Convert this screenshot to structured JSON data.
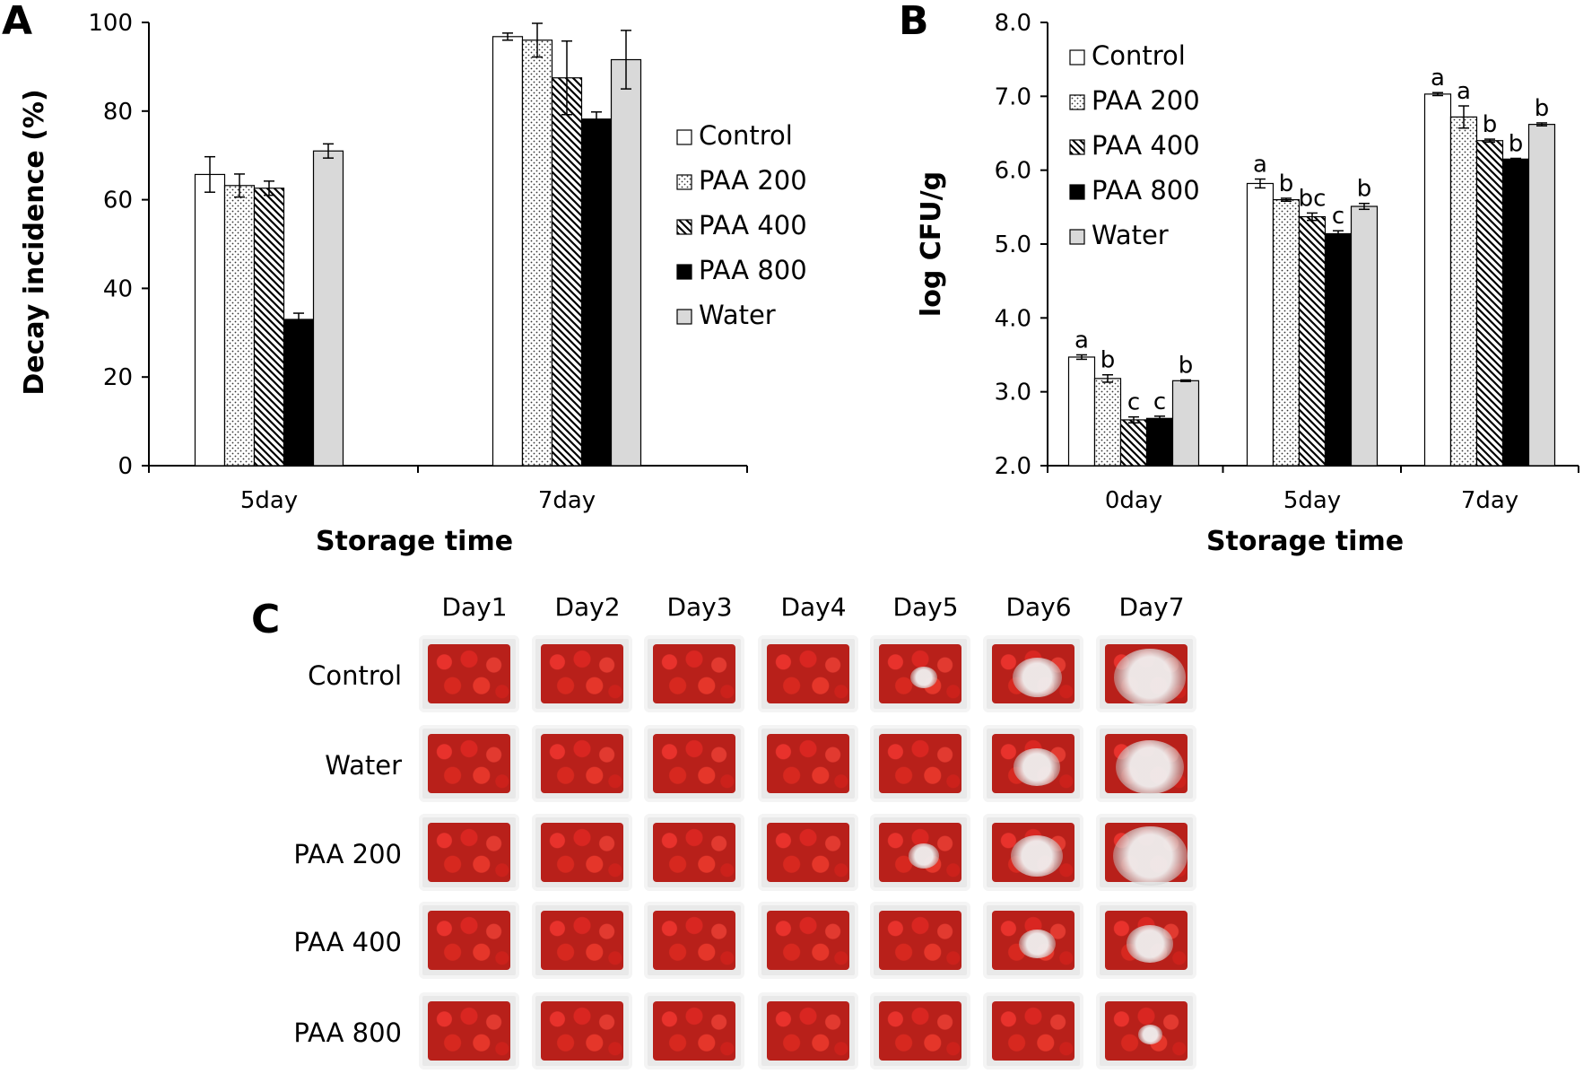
{
  "panels": {
    "a_letter": "A",
    "b_letter": "B",
    "c_letter": "C"
  },
  "chart_data": [
    {
      "type": "bar",
      "categories": [
        "5day",
        "7day"
      ],
      "xlabel": "Storage time",
      "ylabel": "Decay incidence (%)",
      "ylim": [
        0,
        100
      ],
      "yticks": [
        "0",
        "20",
        "40",
        "60",
        "80",
        "100"
      ],
      "legend_position": "right",
      "series": [
        {
          "name": "Control",
          "values": [
            65.7,
            96.8
          ],
          "errors": [
            4.0,
            0.8
          ],
          "pattern": "white"
        },
        {
          "name": "PAA 200",
          "values": [
            63.2,
            96.0
          ],
          "errors": [
            2.6,
            3.8
          ],
          "pattern": "dots"
        },
        {
          "name": "PAA 400",
          "values": [
            62.6,
            87.5
          ],
          "errors": [
            1.6,
            8.3
          ],
          "pattern": "hatch"
        },
        {
          "name": "PAA 800",
          "values": [
            33.0,
            78.2
          ],
          "errors": [
            1.4,
            1.6
          ],
          "pattern": "black"
        },
        {
          "name": "Water",
          "values": [
            71.0,
            91.6
          ],
          "errors": [
            1.6,
            6.6
          ],
          "pattern": "gray"
        }
      ]
    },
    {
      "type": "bar",
      "categories": [
        "0day",
        "5day",
        "7day"
      ],
      "xlabel": "Storage time",
      "ylabel": "log CFU/g",
      "ylim": [
        2.0,
        8.0
      ],
      "yticks": [
        "2.0",
        "3.0",
        "4.0",
        "5.0",
        "6.0",
        "7.0",
        "8.0"
      ],
      "legend_position": "top-left",
      "series": [
        {
          "name": "Control",
          "values": [
            3.47,
            5.82,
            7.03
          ],
          "errors": [
            0.03,
            0.06,
            0.02
          ],
          "labels": [
            "a",
            "a",
            "a"
          ],
          "pattern": "white"
        },
        {
          "name": "PAA 200",
          "values": [
            3.18,
            5.6,
            6.72
          ],
          "errors": [
            0.05,
            0.02,
            0.15
          ],
          "labels": [
            "b",
            "b",
            "a"
          ],
          "pattern": "dots"
        },
        {
          "name": "PAA 400",
          "values": [
            2.62,
            5.37,
            6.4
          ],
          "errors": [
            0.04,
            0.05,
            0.02
          ],
          "labels": [
            "c",
            "bc",
            "b"
          ],
          "pattern": "hatch"
        },
        {
          "name": "PAA 800",
          "values": [
            2.64,
            5.14,
            6.15
          ],
          "errors": [
            0.03,
            0.04,
            0.01
          ],
          "labels": [
            "c",
            "c",
            "b"
          ],
          "pattern": "black"
        },
        {
          "name": "Water",
          "values": [
            3.15,
            5.51,
            6.62
          ],
          "errors": [
            0.01,
            0.04,
            0.02
          ],
          "labels": [
            "b",
            "b",
            "b"
          ],
          "pattern": "gray"
        }
      ]
    }
  ],
  "photo_grid": {
    "columns": [
      "Day1",
      "Day2",
      "Day3",
      "Day4",
      "Day5",
      "Day6",
      "Day7"
    ],
    "rows": [
      "Control",
      "Water",
      "PAA 200",
      "PAA 400",
      "PAA 800"
    ],
    "mold_levels": [
      [
        0,
        0,
        0,
        0,
        0.15,
        0.5,
        0.85
      ],
      [
        0,
        0,
        0,
        0,
        0,
        0.45,
        0.8
      ],
      [
        0,
        0,
        0,
        0,
        0.2,
        0.55,
        0.9
      ],
      [
        0,
        0,
        0,
        0,
        0,
        0.3,
        0.45
      ],
      [
        0,
        0,
        0,
        0,
        0,
        0,
        0.1
      ]
    ]
  }
}
